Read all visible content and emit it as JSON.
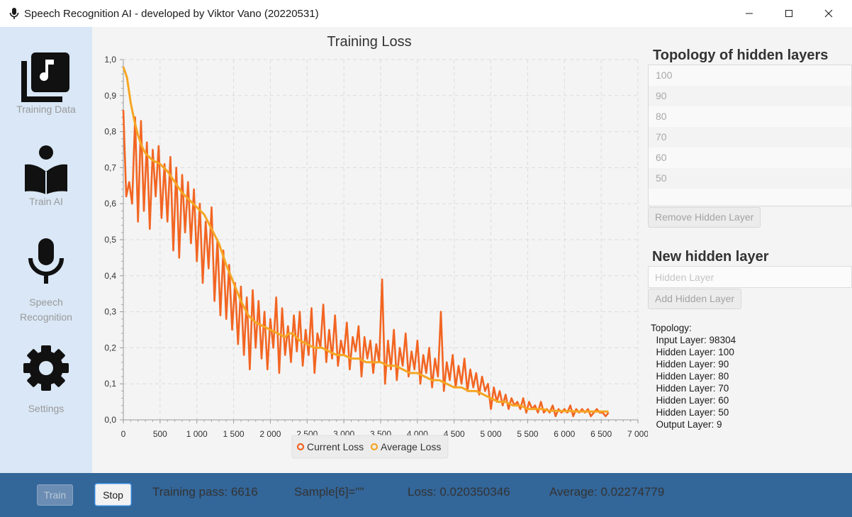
{
  "window": {
    "title": "Speech Recognition AI - developed by Viktor Vano (20220531)"
  },
  "sidebar": {
    "items": [
      {
        "label": "Training Data",
        "icon": "music-library-icon"
      },
      {
        "label": "Train AI",
        "icon": "reader-icon"
      },
      {
        "label": "Speech\nRecognition",
        "label_line1": "Speech",
        "label_line2": "Recognition",
        "icon": "microphone-icon"
      },
      {
        "label": "Settings",
        "icon": "gear-icon"
      }
    ]
  },
  "right_panel": {
    "topology_heading": "Topology of hidden layers",
    "hidden_layers": [
      "100",
      "90",
      "80",
      "70",
      "60",
      "50"
    ],
    "remove_button": "Remove Hidden Layer",
    "new_layer_heading": "New hidden layer",
    "new_layer_placeholder": "Hidden Layer",
    "add_button": "Add Hidden Layer",
    "topology_info": "Topology:\n  Input Layer: 98304\n  Hidden Layer: 100\n  Hidden Layer: 90\n  Hidden Layer: 80\n  Hidden Layer: 70\n  Hidden Layer: 60\n  Hidden Layer: 50\n  Output Layer: 9"
  },
  "bottom_bar": {
    "train_button": "Train",
    "stop_button": "Stop",
    "training_pass": "Training pass: 6616",
    "sample": "Sample[6]=\"\"",
    "loss": "Loss: 0.020350346",
    "average": "Average: 0.02274779"
  },
  "colors": {
    "current_loss": "#f26522",
    "average_loss": "#f5a623",
    "sidebar_bg": "#d9e7f6",
    "bottom_bar_bg": "#336699"
  },
  "chart_data": {
    "type": "line",
    "title": "Training Loss",
    "xlim": [
      0,
      7000
    ],
    "ylim": [
      0,
      1.0
    ],
    "x_ticks": [
      "0",
      "500",
      "1 000",
      "1 500",
      "2 000",
      "2 500",
      "3 000",
      "3 500",
      "4 000",
      "4 500",
      "5 000",
      "5 500",
      "6 000",
      "6 500",
      "7 000"
    ],
    "y_ticks": [
      "0,0",
      "0,1",
      "0,2",
      "0,3",
      "0,4",
      "0,5",
      "0,6",
      "0,7",
      "0,8",
      "0,9",
      "1,0"
    ],
    "grid": true,
    "legend_position": "bottom",
    "series": [
      {
        "name": "Current Loss",
        "color": "#f26522",
        "points": [
          [
            0,
            0.86
          ],
          [
            40,
            0.62
          ],
          [
            80,
            0.66
          ],
          [
            120,
            0.6
          ],
          [
            160,
            0.84
          ],
          [
            200,
            0.55
          ],
          [
            240,
            0.83
          ],
          [
            280,
            0.58
          ],
          [
            320,
            0.77
          ],
          [
            360,
            0.53
          ],
          [
            400,
            0.75
          ],
          [
            440,
            0.62
          ],
          [
            480,
            0.76
          ],
          [
            520,
            0.56
          ],
          [
            560,
            0.71
          ],
          [
            600,
            0.55
          ],
          [
            640,
            0.73
          ],
          [
            680,
            0.47
          ],
          [
            720,
            0.7
          ],
          [
            760,
            0.45
          ],
          [
            800,
            0.68
          ],
          [
            840,
            0.52
          ],
          [
            880,
            0.66
          ],
          [
            920,
            0.49
          ],
          [
            960,
            0.64
          ],
          [
            1000,
            0.44
          ],
          [
            1040,
            0.6
          ],
          [
            1080,
            0.38
          ],
          [
            1120,
            0.55
          ],
          [
            1160,
            0.42
          ],
          [
            1200,
            0.59
          ],
          [
            1240,
            0.33
          ],
          [
            1280,
            0.5
          ],
          [
            1320,
            0.29
          ],
          [
            1360,
            0.47
          ],
          [
            1400,
            0.28
          ],
          [
            1440,
            0.43
          ],
          [
            1480,
            0.25
          ],
          [
            1520,
            0.38
          ],
          [
            1560,
            0.21
          ],
          [
            1600,
            0.37
          ],
          [
            1640,
            0.18
          ],
          [
            1680,
            0.34
          ],
          [
            1720,
            0.14
          ],
          [
            1760,
            0.36
          ],
          [
            1800,
            0.2
          ],
          [
            1840,
            0.33
          ],
          [
            1880,
            0.17
          ],
          [
            1920,
            0.3
          ],
          [
            1960,
            0.14
          ],
          [
            2000,
            0.28
          ],
          [
            2040,
            0.2
          ],
          [
            2080,
            0.34
          ],
          [
            2120,
            0.13
          ],
          [
            2160,
            0.31
          ],
          [
            2200,
            0.18
          ],
          [
            2240,
            0.26
          ],
          [
            2280,
            0.16
          ],
          [
            2320,
            0.29
          ],
          [
            2360,
            0.19
          ],
          [
            2400,
            0.3
          ],
          [
            2440,
            0.15
          ],
          [
            2480,
            0.25
          ],
          [
            2520,
            0.18
          ],
          [
            2560,
            0.31
          ],
          [
            2600,
            0.13
          ],
          [
            2640,
            0.24
          ],
          [
            2680,
            0.2
          ],
          [
            2720,
            0.32
          ],
          [
            2760,
            0.16
          ],
          [
            2800,
            0.25
          ],
          [
            2840,
            0.17
          ],
          [
            2880,
            0.29
          ],
          [
            2920,
            0.15
          ],
          [
            2960,
            0.22
          ],
          [
            3000,
            0.18
          ],
          [
            3040,
            0.27
          ],
          [
            3080,
            0.14
          ],
          [
            3120,
            0.23
          ],
          [
            3160,
            0.19
          ],
          [
            3200,
            0.26
          ],
          [
            3240,
            0.12
          ],
          [
            3280,
            0.23
          ],
          [
            3320,
            0.17
          ],
          [
            3360,
            0.22
          ],
          [
            3400,
            0.13
          ],
          [
            3440,
            0.21
          ],
          [
            3480,
            0.16
          ],
          [
            3520,
            0.39
          ],
          [
            3560,
            0.1
          ],
          [
            3600,
            0.22
          ],
          [
            3640,
            0.14
          ],
          [
            3680,
            0.25
          ],
          [
            3720,
            0.11
          ],
          [
            3760,
            0.2
          ],
          [
            3800,
            0.15
          ],
          [
            3840,
            0.24
          ],
          [
            3880,
            0.12
          ],
          [
            3920,
            0.19
          ],
          [
            3960,
            0.14
          ],
          [
            4000,
            0.22
          ],
          [
            4040,
            0.1
          ],
          [
            4080,
            0.18
          ],
          [
            4120,
            0.13
          ],
          [
            4160,
            0.2
          ],
          [
            4200,
            0.09
          ],
          [
            4240,
            0.17
          ],
          [
            4280,
            0.12
          ],
          [
            4320,
            0.3
          ],
          [
            4360,
            0.08
          ],
          [
            4400,
            0.16
          ],
          [
            4440,
            0.11
          ],
          [
            4480,
            0.18
          ],
          [
            4520,
            0.09
          ],
          [
            4560,
            0.15
          ],
          [
            4600,
            0.1
          ],
          [
            4640,
            0.17
          ],
          [
            4680,
            0.08
          ],
          [
            4720,
            0.14
          ],
          [
            4760,
            0.09
          ],
          [
            4800,
            0.13
          ],
          [
            4840,
            0.07
          ],
          [
            4880,
            0.12
          ],
          [
            4920,
            0.08
          ],
          [
            4960,
            0.1
          ],
          [
            5000,
            0.03
          ],
          [
            5040,
            0.09
          ],
          [
            5080,
            0.05
          ],
          [
            5120,
            0.08
          ],
          [
            5160,
            0.04
          ],
          [
            5200,
            0.07
          ],
          [
            5240,
            0.03
          ],
          [
            5280,
            0.06
          ],
          [
            5320,
            0.04
          ],
          [
            5360,
            0.05
          ],
          [
            5400,
            0.03
          ],
          [
            5440,
            0.06
          ],
          [
            5480,
            0.02
          ],
          [
            5520,
            0.05
          ],
          [
            5560,
            0.03
          ],
          [
            5600,
            0.04
          ],
          [
            5640,
            0.02
          ],
          [
            5680,
            0.05
          ],
          [
            5720,
            0.02
          ],
          [
            5760,
            0.03
          ],
          [
            5800,
            0.02
          ],
          [
            5840,
            0.04
          ],
          [
            5880,
            0.01
          ],
          [
            5920,
            0.03
          ],
          [
            5960,
            0.02
          ],
          [
            6000,
            0.03
          ],
          [
            6040,
            0.02
          ],
          [
            6080,
            0.04
          ],
          [
            6120,
            0.01
          ],
          [
            6160,
            0.03
          ],
          [
            6200,
            0.02
          ],
          [
            6240,
            0.03
          ],
          [
            6280,
            0.02
          ],
          [
            6320,
            0.03
          ],
          [
            6360,
            0.01
          ],
          [
            6400,
            0.02
          ],
          [
            6440,
            0.03
          ],
          [
            6480,
            0.02
          ],
          [
            6520,
            0.02
          ],
          [
            6560,
            0.01
          ],
          [
            6600,
            0.02
          ]
        ]
      },
      {
        "name": "Average Loss",
        "color": "#f5a623",
        "points": [
          [
            0,
            0.98
          ],
          [
            50,
            0.95
          ],
          [
            100,
            0.88
          ],
          [
            150,
            0.83
          ],
          [
            200,
            0.79
          ],
          [
            250,
            0.76
          ],
          [
            300,
            0.74
          ],
          [
            400,
            0.72
          ],
          [
            500,
            0.71
          ],
          [
            600,
            0.69
          ],
          [
            700,
            0.66
          ],
          [
            800,
            0.63
          ],
          [
            900,
            0.61
          ],
          [
            1000,
            0.59
          ],
          [
            1100,
            0.57
          ],
          [
            1200,
            0.53
          ],
          [
            1300,
            0.49
          ],
          [
            1400,
            0.43
          ],
          [
            1500,
            0.38
          ],
          [
            1600,
            0.33
          ],
          [
            1700,
            0.29
          ],
          [
            1800,
            0.27
          ],
          [
            1900,
            0.26
          ],
          [
            2000,
            0.25
          ],
          [
            2100,
            0.24
          ],
          [
            2200,
            0.23
          ],
          [
            2250,
            0.24
          ],
          [
            2300,
            0.24
          ],
          [
            2400,
            0.22
          ],
          [
            2500,
            0.21
          ],
          [
            2600,
            0.2
          ],
          [
            2700,
            0.2
          ],
          [
            2800,
            0.19
          ],
          [
            2900,
            0.18
          ],
          [
            3000,
            0.18
          ],
          [
            3100,
            0.17
          ],
          [
            3200,
            0.17
          ],
          [
            3300,
            0.16
          ],
          [
            3400,
            0.16
          ],
          [
            3500,
            0.16
          ],
          [
            3600,
            0.15
          ],
          [
            3700,
            0.15
          ],
          [
            3800,
            0.14
          ],
          [
            3900,
            0.13
          ],
          [
            4000,
            0.13
          ],
          [
            4100,
            0.12
          ],
          [
            4200,
            0.11
          ],
          [
            4300,
            0.11
          ],
          [
            4400,
            0.1
          ],
          [
            4500,
            0.09
          ],
          [
            4600,
            0.09
          ],
          [
            4700,
            0.08
          ],
          [
            4800,
            0.08
          ],
          [
            4900,
            0.07
          ],
          [
            5000,
            0.06
          ],
          [
            5100,
            0.05
          ],
          [
            5200,
            0.05
          ],
          [
            5300,
            0.04
          ],
          [
            5400,
            0.04
          ],
          [
            5500,
            0.03
          ],
          [
            5600,
            0.03
          ],
          [
            5700,
            0.03
          ],
          [
            5800,
            0.025
          ],
          [
            5900,
            0.025
          ],
          [
            6000,
            0.024
          ],
          [
            6100,
            0.024
          ],
          [
            6200,
            0.023
          ],
          [
            6300,
            0.023
          ],
          [
            6400,
            0.023
          ],
          [
            6500,
            0.023
          ],
          [
            6600,
            0.023
          ]
        ]
      }
    ]
  }
}
